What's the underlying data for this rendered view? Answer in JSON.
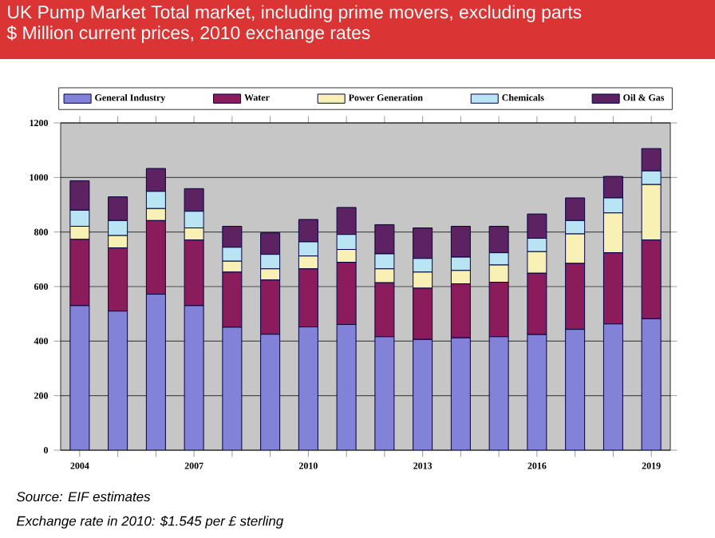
{
  "chart_data": {
    "type": "bar",
    "stacked": true,
    "title": "UK Pump Market Total market, including prime movers, excluding parts",
    "subtitle": "$ Million current prices, 2010 exchange rates",
    "categories": [
      "2004",
      null,
      null,
      "2007",
      null,
      null,
      "2010",
      null,
      null,
      "2013",
      null,
      null,
      "2016",
      null,
      null,
      "2019"
    ],
    "series": [
      {
        "name": "General Industry",
        "color": "#8282d8",
        "values": [
          530,
          510,
          572,
          530,
          451,
          425,
          452,
          461,
          416,
          406,
          412,
          416,
          424,
          443,
          463,
          482
        ]
      },
      {
        "name": "Water",
        "color": "#8b1c5c",
        "values": [
          243,
          232,
          270,
          241,
          202,
          199,
          213,
          228,
          198,
          188,
          198,
          200,
          225,
          242,
          261,
          289
        ]
      },
      {
        "name": "Power Generation",
        "color": "#f8f0b4",
        "values": [
          48,
          45,
          44,
          44,
          40,
          41,
          47,
          47,
          51,
          59,
          49,
          63,
          79,
          108,
          146,
          203
        ]
      },
      {
        "name": "Chemicals",
        "color": "#b8e4f4",
        "values": [
          59,
          55,
          63,
          61,
          51,
          53,
          52,
          55,
          55,
          50,
          49,
          45,
          49,
          49,
          55,
          50
        ]
      },
      {
        "name": "Oil & Gas",
        "color": "#5c2262",
        "values": [
          108,
          87,
          84,
          83,
          77,
          79,
          82,
          99,
          107,
          112,
          113,
          97,
          89,
          83,
          79,
          82
        ]
      }
    ],
    "ylim": [
      0,
      1200
    ],
    "yticks": [
      0,
      200,
      400,
      600,
      800,
      1000,
      1200
    ],
    "grid": "y",
    "legend": "top",
    "annotations": [
      "Source: EIF estimates",
      "Exchange rate in 2010: $1.545 per £ sterling"
    ]
  }
}
